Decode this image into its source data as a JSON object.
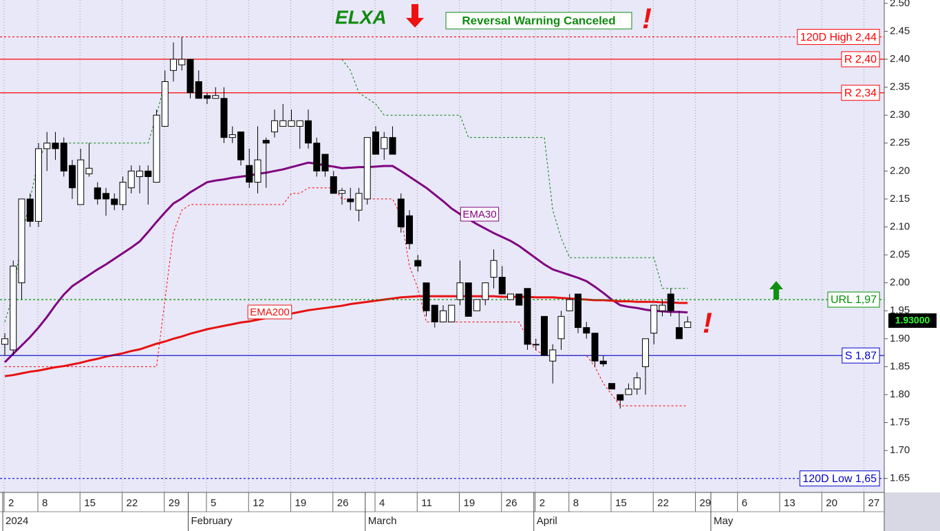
{
  "chart_data": {
    "type": "candlestick",
    "title": "ELXA",
    "annotation": "Reversal Warning Canceled",
    "signals": [
      "!",
      "!"
    ],
    "last_price": {
      "value": 1.93,
      "label": "1.93000"
    },
    "categories": [
      "2",
      null,
      null,
      null,
      "8",
      null,
      null,
      null,
      null,
      "15",
      null,
      null,
      null,
      null,
      "22",
      null,
      null,
      null,
      null,
      "29",
      null,
      null,
      null,
      null,
      "5",
      null,
      null,
      null,
      null,
      "12",
      null,
      null,
      null,
      null,
      "19",
      null,
      null,
      null,
      null,
      "26",
      null,
      null,
      null,
      null,
      "4",
      null,
      null,
      null,
      null,
      "11",
      null,
      null,
      null,
      null,
      "19",
      null,
      null,
      null,
      null,
      "26",
      null,
      null,
      null,
      "2",
      null,
      null,
      null,
      "8",
      null,
      null,
      null,
      null,
      "15",
      null,
      null,
      null,
      null,
      "22",
      null,
      null,
      null,
      null,
      "29",
      null,
      null,
      null,
      null,
      "6",
      null,
      null,
      null,
      null,
      "13",
      null,
      null,
      null,
      null,
      "20",
      null,
      null,
      null,
      null,
      "27"
    ],
    "periods": [
      "2024",
      null,
      null,
      null,
      null,
      null,
      null,
      null,
      null,
      null,
      null,
      null,
      null,
      null,
      null,
      null,
      null,
      null,
      null,
      null,
      null,
      null,
      "February",
      null,
      null,
      null,
      null,
      null,
      null,
      null,
      null,
      null,
      null,
      null,
      null,
      null,
      null,
      null,
      null,
      null,
      null,
      null,
      null,
      "March",
      null,
      null,
      null,
      null,
      null,
      null,
      null,
      null,
      null,
      null,
      null,
      null,
      null,
      null,
      null,
      null,
      null,
      null,
      null,
      "April",
      null,
      null,
      null,
      null,
      null,
      null,
      null,
      null,
      null,
      null,
      null,
      null,
      null,
      null,
      null,
      null,
      null,
      null,
      null,
      null,
      "May",
      null,
      null,
      null,
      null,
      null,
      null,
      null,
      null,
      null,
      null,
      null,
      null,
      null,
      null,
      null,
      null,
      null,
      null
    ],
    "open": [
      1.89,
      1.88,
      2.0,
      2.15,
      2.11,
      2.24,
      2.25,
      2.25,
      2.21,
      2.14,
      2.195,
      2.17,
      2.16,
      2.15,
      2.14,
      2.17,
      2.19,
      2.2,
      2.18,
      2.28,
      2.38,
      2.39,
      2.4,
      2.36,
      2.335,
      2.33,
      2.33,
      2.26,
      2.27,
      2.21,
      2.18,
      2.255,
      2.27,
      2.28,
      2.28,
      2.28,
      2.29,
      2.25,
      2.23,
      2.19,
      2.16,
      2.15,
      2.13,
      2.15,
      2.27,
      2.24,
      2.26,
      2.15,
      2.12,
      2.04,
      2.0,
      1.96,
      1.93,
      1.93,
      1.97,
      2.0,
      1.95,
      1.97,
      2.01,
      2.01,
      1.97,
      1.98,
      1.99,
      1.89,
      1.94,
      1.86,
      1.9,
      1.95,
      1.98,
      1.92,
      1.91,
      1.86,
      1.82,
      1.8,
      1.8,
      1.81,
      1.85,
      1.91,
      1.95,
      1.98,
      1.92,
      1.92,
      null,
      null,
      null,
      null,
      null,
      null,
      null,
      null,
      null,
      null,
      null,
      null,
      null,
      null,
      null,
      null,
      null,
      null,
      null,
      null,
      null
    ],
    "high": [
      1.91,
      2.04,
      2.15,
      2.16,
      2.25,
      2.27,
      2.27,
      2.26,
      2.22,
      2.24,
      2.25,
      2.18,
      2.17,
      2.16,
      2.19,
      2.21,
      2.21,
      2.21,
      2.31,
      2.38,
      2.43,
      2.44,
      2.4,
      2.38,
      2.34,
      2.35,
      2.35,
      2.28,
      2.27,
      2.24,
      2.28,
      2.26,
      2.31,
      2.32,
      2.31,
      2.29,
      2.31,
      2.26,
      2.23,
      2.2,
      2.17,
      2.17,
      2.17,
      2.26,
      2.28,
      2.27,
      2.28,
      2.16,
      2.13,
      2.05,
      2.0,
      1.96,
      1.96,
      1.96,
      2.04,
      2.0,
      1.97,
      2.0,
      2.06,
      2.03,
      1.98,
      1.98,
      1.99,
      1.9,
      1.94,
      1.89,
      1.95,
      1.98,
      1.98,
      1.93,
      1.91,
      1.87,
      1.82,
      1.8,
      1.82,
      1.84,
      1.9,
      1.96,
      1.97,
      1.99,
      1.95,
      1.94,
      null,
      null,
      null,
      null,
      null,
      null,
      null,
      null,
      null,
      null,
      null,
      null,
      null,
      null,
      null,
      null,
      null,
      null,
      null,
      null,
      null
    ],
    "low": [
      1.87,
      1.87,
      1.97,
      2.1,
      2.1,
      2.2,
      2.22,
      2.19,
      2.15,
      2.14,
      2.19,
      2.14,
      2.12,
      2.13,
      2.13,
      2.16,
      2.16,
      2.14,
      2.18,
      2.28,
      2.36,
      2.38,
      2.33,
      2.33,
      2.32,
      2.33,
      2.25,
      2.25,
      2.21,
      2.17,
      2.16,
      2.17,
      2.26,
      2.28,
      2.28,
      2.24,
      2.24,
      2.19,
      2.19,
      2.16,
      2.14,
      2.13,
      2.11,
      2.14,
      2.23,
      2.22,
      2.23,
      2.09,
      2.06,
      2.02,
      1.94,
      1.92,
      1.93,
      1.93,
      1.96,
      1.94,
      1.95,
      1.96,
      1.99,
      1.98,
      1.97,
      1.96,
      1.88,
      1.88,
      1.87,
      1.82,
      1.88,
      1.95,
      1.91,
      1.9,
      1.85,
      1.85,
      1.81,
      1.775,
      1.8,
      1.8,
      1.8,
      1.89,
      1.94,
      1.94,
      1.9,
      1.92,
      null,
      null,
      null,
      null,
      null,
      null,
      null,
      null,
      null,
      null,
      null,
      null,
      null,
      null,
      null,
      null,
      null,
      null,
      null,
      null,
      null
    ],
    "close": [
      1.9,
      2.03,
      2.15,
      2.11,
      2.24,
      2.25,
      2.24,
      2.2,
      2.17,
      2.22,
      2.205,
      2.15,
      2.15,
      2.14,
      2.18,
      2.2,
      2.2,
      2.19,
      2.3,
      2.36,
      2.4,
      2.4,
      2.34,
      2.33,
      2.33,
      2.335,
      2.26,
      2.265,
      2.22,
      2.18,
      2.22,
      2.25,
      2.29,
      2.29,
      2.29,
      2.29,
      2.25,
      2.2,
      2.2,
      2.16,
      2.165,
      2.145,
      2.16,
      2.26,
      2.23,
      2.26,
      2.23,
      2.1,
      2.07,
      2.03,
      1.95,
      1.93,
      1.95,
      1.96,
      2.0,
      1.94,
      1.97,
      2.0,
      2.04,
      1.98,
      1.98,
      1.96,
      1.89,
      1.89,
      1.87,
      1.88,
      1.94,
      1.97,
      1.92,
      1.91,
      1.86,
      1.855,
      1.81,
      1.79,
      1.81,
      1.83,
      1.9,
      1.96,
      1.96,
      1.95,
      1.9,
      1.93,
      null,
      null,
      null,
      null,
      null,
      null,
      null,
      null,
      null,
      null,
      null,
      null,
      null,
      null,
      null,
      null,
      null,
      null,
      null,
      null,
      null
    ],
    "series": [
      {
        "name": "EMA30",
        "color": "#800080",
        "width": 3,
        "dashed": false,
        "values": [
          1.858,
          1.873,
          1.888,
          1.903,
          1.92,
          1.939,
          1.96,
          1.979,
          1.994,
          2.004,
          2.014,
          2.024,
          2.033,
          2.043,
          2.053,
          2.063,
          2.074,
          2.091,
          2.109,
          2.126,
          2.142,
          2.151,
          2.162,
          2.171,
          2.18,
          2.183,
          2.185,
          2.188,
          2.19,
          2.192,
          2.195,
          2.197,
          2.2,
          2.203,
          2.207,
          2.211,
          2.215,
          2.213,
          2.21,
          2.208,
          2.205,
          2.206,
          2.207,
          2.207,
          2.208,
          2.209,
          2.209,
          2.2,
          2.19,
          2.18,
          2.17,
          2.158,
          2.146,
          2.133,
          2.123,
          2.114,
          2.105,
          2.097,
          2.089,
          2.082,
          2.075,
          2.066,
          2.055,
          2.044,
          2.033,
          2.024,
          2.019,
          2.014,
          2.009,
          2.003,
          1.993,
          1.982,
          1.97,
          1.96,
          1.957,
          1.955,
          1.952,
          1.95,
          1.949,
          1.948,
          1.948,
          1.947,
          null,
          null,
          null,
          null,
          null,
          null,
          null,
          null,
          null,
          null,
          null,
          null,
          null,
          null,
          null,
          null,
          null,
          null,
          null,
          null,
          null
        ]
      },
      {
        "name": "EMA200",
        "color": "#e81010",
        "width": 3,
        "dashed": false,
        "values": [
          1.833,
          1.835,
          1.838,
          1.841,
          1.843,
          1.846,
          1.849,
          1.851,
          1.854,
          1.857,
          1.861,
          1.864,
          1.868,
          1.871,
          1.874,
          1.878,
          1.881,
          1.886,
          1.891,
          1.895,
          1.9,
          1.904,
          1.909,
          1.913,
          1.917,
          1.92,
          1.923,
          1.926,
          1.929,
          1.931,
          1.934,
          1.937,
          1.94,
          1.942,
          1.945,
          1.948,
          1.951,
          1.953,
          1.955,
          1.957,
          1.959,
          1.962,
          1.964,
          1.966,
          1.968,
          1.97,
          1.972,
          1.974,
          1.975,
          1.976,
          1.976,
          1.976,
          1.976,
          1.976,
          1.976,
          1.976,
          1.976,
          1.976,
          1.976,
          1.975,
          1.975,
          1.975,
          1.975,
          1.974,
          1.974,
          1.974,
          1.973,
          1.972,
          1.971,
          1.97,
          1.969,
          1.969,
          1.968,
          1.967,
          1.967,
          1.966,
          1.966,
          1.966,
          1.965,
          1.965,
          1.964,
          1.964,
          null,
          null,
          null,
          null,
          null,
          null,
          null,
          null,
          null,
          null,
          null,
          null,
          null,
          null,
          null,
          null,
          null,
          null,
          null,
          null,
          null
        ]
      },
      {
        "color": "#008000",
        "width": 1,
        "dashed": true,
        "values": [
          1.93,
          1.98,
          2.08,
          2.15,
          2.22,
          2.25,
          2.25,
          2.25,
          2.25,
          2.25,
          2.25,
          2.25,
          2.25,
          2.25,
          2.25,
          2.25,
          2.25,
          2.25,
          2.3,
          2.36,
          null,
          null,
          null,
          null,
          null,
          null,
          null,
          null,
          null,
          null,
          null,
          null,
          null,
          null,
          null,
          null,
          null,
          null,
          null,
          null,
          2.4,
          2.38,
          2.34,
          2.33,
          2.32,
          2.3,
          2.3,
          2.3,
          2.3,
          2.3,
          2.3,
          2.3,
          2.3,
          2.3,
          2.3,
          2.26,
          2.26,
          2.26,
          2.26,
          2.26,
          2.26,
          2.26,
          2.26,
          2.26,
          2.26,
          2.13,
          2.08,
          2.045,
          2.045,
          2.045,
          2.045,
          2.045,
          2.045,
          2.045,
          2.045,
          2.045,
          2.045,
          2.045,
          1.99,
          1.99,
          1.99,
          1.99,
          null,
          null,
          null,
          null,
          null,
          null,
          null,
          null,
          null,
          null,
          null,
          null,
          null,
          null,
          null,
          null,
          null,
          null,
          null,
          null,
          null
        ]
      },
      {
        "color": "#ff0000",
        "width": 1,
        "dashed": true,
        "values": [
          1.85,
          1.85,
          1.85,
          1.85,
          1.85,
          1.85,
          1.85,
          1.85,
          1.85,
          1.85,
          1.85,
          1.85,
          1.85,
          1.85,
          1.85,
          1.85,
          1.85,
          1.85,
          1.85,
          1.97,
          2.09,
          2.13,
          2.14,
          2.14,
          2.14,
          2.14,
          2.14,
          2.14,
          2.14,
          2.14,
          2.14,
          2.14,
          2.14,
          2.14,
          2.16,
          2.16,
          2.17,
          2.17,
          2.17,
          2.17,
          2.15,
          2.15,
          2.15,
          2.15,
          2.15,
          2.15,
          2.15,
          2.12,
          2.03,
          1.99,
          1.93,
          1.93,
          1.93,
          1.93,
          1.93,
          1.93,
          1.93,
          1.93,
          1.93,
          1.93,
          1.93,
          1.93,
          1.9,
          1.88,
          1.87,
          1.87,
          1.87,
          1.87,
          1.87,
          1.87,
          1.85,
          1.82,
          1.8,
          1.78,
          1.78,
          1.78,
          1.78,
          1.78,
          1.78,
          1.78,
          1.78,
          1.78,
          null,
          null,
          null,
          null,
          null,
          null,
          null,
          null,
          null,
          null,
          null,
          null,
          null,
          null,
          null,
          null,
          null,
          null,
          null,
          null,
          null
        ]
      }
    ],
    "levels": [
      {
        "label": "120D High 2,44",
        "value": 2.44,
        "color": "#ff0000",
        "dashed": true
      },
      {
        "label": "R 2,40",
        "value": 2.4,
        "color": "#ff0000",
        "dashed": false
      },
      {
        "label": "R 2,34",
        "value": 2.34,
        "color": "#ff0000",
        "dashed": false
      },
      {
        "label": "URL 1,97",
        "value": 1.97,
        "color": "#009000",
        "dashed": true
      },
      {
        "label": "S 1,87",
        "value": 1.87,
        "color": "#0000cc",
        "dashed": false
      },
      {
        "label": "120D Low 1,65",
        "value": 1.65,
        "color": "#0000cc",
        "dashed": true
      }
    ],
    "ylim": [
      1.625,
      2.506
    ],
    "yticks": [
      1.65,
      {
        "value": 1.7,
        "label": "1.70"
      },
      1.75,
      {
        "value": 1.8,
        "label": "1.80"
      },
      1.85,
      {
        "value": 1.9,
        "label": "1.90"
      },
      1.95,
      {
        "value": 2.0,
        "label": "2.00"
      },
      2.05,
      {
        "value": 2.1,
        "label": "2.10"
      },
      2.15,
      {
        "value": 2.2,
        "label": "2.20"
      },
      2.25,
      {
        "value": 2.3,
        "label": "2.30"
      },
      2.35,
      {
        "value": 2.4,
        "label": "2.40"
      },
      2.45,
      {
        "value": 2.5,
        "label": "2.50"
      }
    ],
    "grid": "x"
  }
}
